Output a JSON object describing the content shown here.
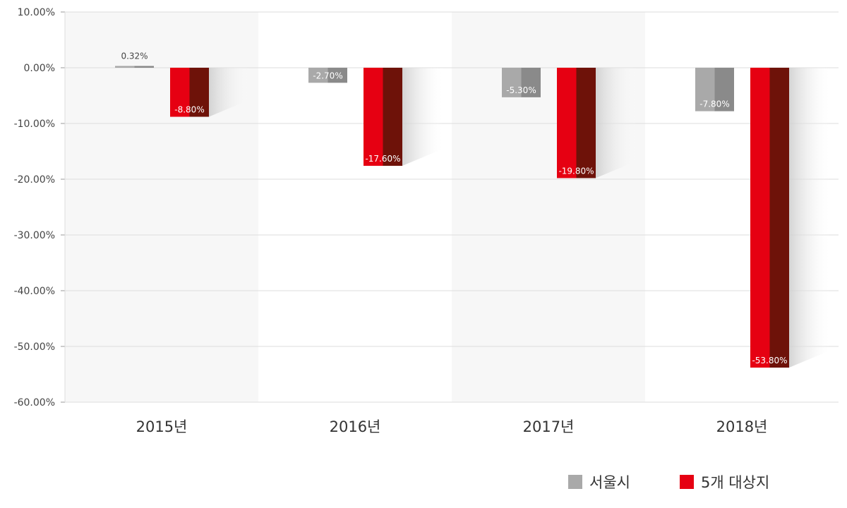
{
  "chart_data": {
    "type": "bar",
    "categories": [
      "2015년",
      "2016년",
      "2017년",
      "2018년"
    ],
    "series": [
      {
        "name": "서울시",
        "values": [
          0.32,
          -2.7,
          -5.3,
          -7.8
        ],
        "labels": [
          "0.32%",
          "-2.70%",
          "-5.30%",
          "-7.80%"
        ],
        "color": "#a9a9a9",
        "shade": "#8a8a8a"
      },
      {
        "name": "5개 대상지",
        "values": [
          -8.8,
          -17.6,
          -19.8,
          -53.8
        ],
        "labels": [
          "-8.80%",
          "-17.60%",
          "-19.80%",
          "-53.80%"
        ],
        "color": "#e60012",
        "shade": "#6e1209"
      }
    ],
    "yticks": [
      10,
      0,
      -10,
      -20,
      -30,
      -40,
      -50,
      -60
    ],
    "ytick_labels": [
      "10.00%",
      "0.00%",
      "-10.00%",
      "-20.00%",
      "-30.00%",
      "-40.00%",
      "-50.00%",
      "-60.00%"
    ],
    "ylim": [
      -60,
      10
    ],
    "grid": true,
    "legend": "bottom-right"
  }
}
